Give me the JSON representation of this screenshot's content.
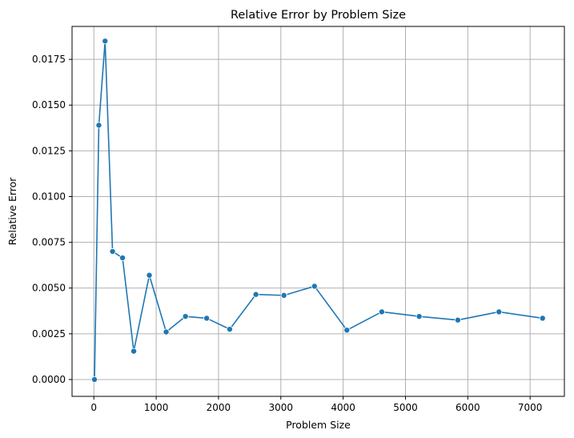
{
  "chart_data": {
    "type": "line",
    "title": "Relative Error by Problem Size",
    "xlabel": "Problem Size",
    "ylabel": "Relative Error",
    "xlim": [
      -350,
      7550
    ],
    "ylim": [
      -0.00092,
      0.0193
    ],
    "xticks": [
      0,
      1000,
      2000,
      3000,
      4000,
      5000,
      6000,
      7000
    ],
    "xtick_labels": [
      "0",
      "1000",
      "2000",
      "3000",
      "4000",
      "5000",
      "6000",
      "7000"
    ],
    "yticks": [
      0.0,
      0.0025,
      0.005,
      0.0075,
      0.01,
      0.0125,
      0.015,
      0.0175
    ],
    "ytick_labels": [
      "0.0000",
      "0.0025",
      "0.0050",
      "0.0075",
      "0.0100",
      "0.0125",
      "0.0150",
      "0.0175"
    ],
    "grid": true,
    "marker": "circle",
    "color": "#1f77b4",
    "series": [
      {
        "x": [
          10,
          80,
          180,
          300,
          460,
          640,
          890,
          1160,
          1470,
          1810,
          2180,
          2600,
          3050,
          3540,
          4060,
          4620,
          5220,
          5840,
          6500,
          7200
        ],
        "y": [
          0.0,
          0.0139,
          0.0185,
          0.007,
          0.00665,
          0.00155,
          0.0057,
          0.0026,
          0.00345,
          0.00335,
          0.00275,
          0.00465,
          0.0046,
          0.0051,
          0.0027,
          0.0037,
          0.00345,
          0.00325,
          0.0037,
          0.00335
        ]
      }
    ]
  }
}
